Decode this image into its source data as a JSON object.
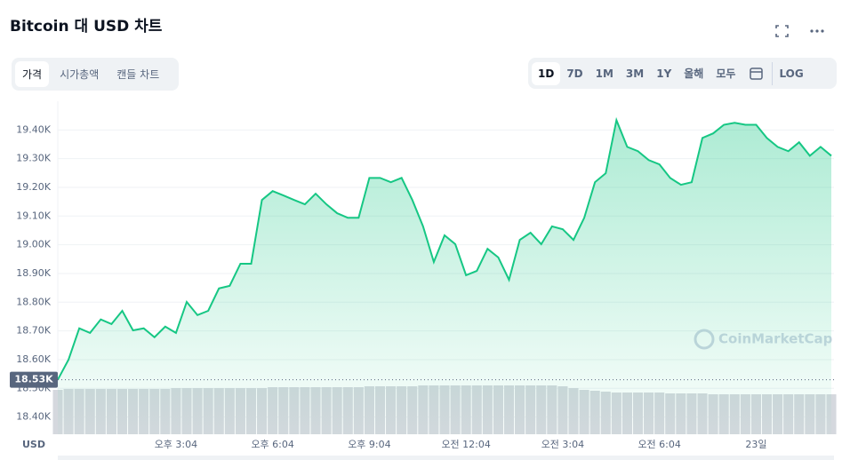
{
  "header": {
    "title": "Bitcoin 대 USD 차트",
    "tabs": [
      "가격",
      "시가총액",
      "캔들 차트"
    ],
    "ranges": [
      "1D",
      "7D",
      "1M",
      "3M",
      "1Y",
      "올해",
      "모두"
    ],
    "log_button": "LOG"
  },
  "chart_data": {
    "type": "area",
    "color": "#16c784",
    "volume_color": "#d5d8de",
    "grid": true,
    "currency_label": "USD",
    "watermark": "CoinMarketCap",
    "price_marker": {
      "value": 18530,
      "label": "18.53K"
    },
    "ylim": [
      18340,
      19500
    ],
    "yticks": [
      {
        "value": 18400,
        "label": "18.40K"
      },
      {
        "value": 18500,
        "label": "18.50K"
      },
      {
        "value": 18600,
        "label": "18.60K"
      },
      {
        "value": 18700,
        "label": "18.70K"
      },
      {
        "value": 18800,
        "label": "18.80K"
      },
      {
        "value": 18900,
        "label": "18.90K"
      },
      {
        "value": 19000,
        "label": "19.00K"
      },
      {
        "value": 19100,
        "label": "19.10K"
      },
      {
        "value": 19200,
        "label": "19.20K"
      },
      {
        "value": 19300,
        "label": "19.30K"
      },
      {
        "value": 19400,
        "label": "19.40K"
      }
    ],
    "categories": [
      null,
      null,
      null,
      null,
      null,
      null,
      null,
      null,
      null,
      null,
      null,
      "오후 3:04",
      null,
      null,
      null,
      null,
      null,
      null,
      null,
      null,
      "오후 6:04",
      null,
      null,
      null,
      null,
      null,
      null,
      null,
      null,
      "오후 9:04",
      null,
      null,
      null,
      null,
      null,
      null,
      null,
      null,
      "오전 12:04",
      null,
      null,
      null,
      null,
      null,
      null,
      null,
      null,
      "오전 3:04",
      null,
      null,
      null,
      null,
      null,
      null,
      null,
      null,
      "오전 6:04",
      null,
      null,
      null,
      null,
      null,
      null,
      null,
      null,
      "23일",
      null,
      null,
      null,
      null,
      null,
      null,
      null
    ],
    "values": [
      18530,
      18600,
      18709,
      18693,
      18740,
      18724,
      18770,
      18702,
      18709,
      18678,
      18715,
      18693,
      18801,
      18755,
      18770,
      18848,
      18857,
      18934,
      18934,
      19156,
      19187,
      19172,
      19156,
      19141,
      19178,
      19141,
      19110,
      19094,
      19094,
      19233,
      19233,
      19218,
      19233,
      19156,
      19064,
      18940,
      19033,
      19002,
      18894,
      18909,
      18986,
      18956,
      18878,
      19017,
      19042,
      19002,
      19064,
      19054,
      19017,
      19094,
      19218,
      19249,
      19434,
      19341,
      19326,
      19295,
      19280,
      19233,
      19209,
      19218,
      19372,
      19388,
      19418,
      19425,
      19418,
      19418,
      19372,
      19341,
      19326,
      19357,
      19310,
      19341,
      19310
    ],
    "volume": [
      50,
      51,
      51,
      51,
      51,
      51,
      51,
      51,
      51,
      51,
      51,
      52,
      52,
      52,
      52,
      52,
      52,
      52,
      52,
      52,
      53,
      53,
      53,
      53,
      53,
      53,
      53,
      53,
      53,
      54,
      54,
      54,
      54,
      54,
      55,
      55,
      55,
      55,
      55,
      55,
      55,
      55,
      55,
      55,
      55,
      55,
      55,
      54,
      52,
      50,
      49,
      48,
      47,
      47,
      47,
      47,
      47,
      46,
      46,
      46,
      46,
      45,
      45,
      45,
      45,
      45,
      45,
      45,
      45,
      45,
      45,
      45,
      45
    ]
  }
}
